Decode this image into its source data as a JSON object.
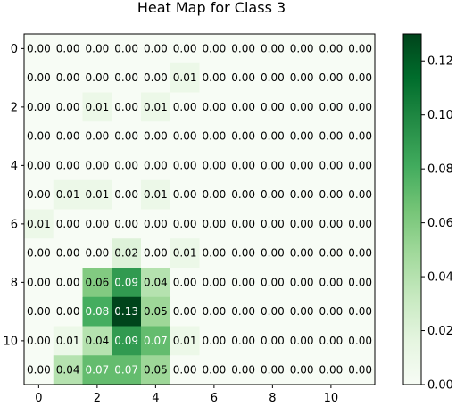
{
  "chart_data": {
    "type": "heatmap",
    "title": "Heat Map for Class 3",
    "xlabel": "",
    "ylabel": "",
    "colormap": "Greens",
    "vmin": 0.0,
    "vmax": 0.13,
    "x_ticks": [
      0,
      2,
      4,
      6,
      8,
      10
    ],
    "y_ticks": [
      0,
      2,
      4,
      6,
      8,
      10
    ],
    "colorbar_ticks": [
      "0.00",
      "0.02",
      "0.04",
      "0.06",
      "0.08",
      "0.10",
      "0.12"
    ],
    "values": [
      [
        0.0,
        0.0,
        0.0,
        0.0,
        0.0,
        0.0,
        0.0,
        0.0,
        0.0,
        0.0,
        0.0,
        0.0
      ],
      [
        0.0,
        0.0,
        0.0,
        0.0,
        0.0,
        0.01,
        0.0,
        0.0,
        0.0,
        0.0,
        0.0,
        0.0
      ],
      [
        0.0,
        0.0,
        0.01,
        0.0,
        0.01,
        0.0,
        0.0,
        0.0,
        0.0,
        0.0,
        0.0,
        0.0
      ],
      [
        0.0,
        0.0,
        0.0,
        0.0,
        0.0,
        0.0,
        0.0,
        0.0,
        0.0,
        0.0,
        0.0,
        0.0
      ],
      [
        0.0,
        0.0,
        0.0,
        0.0,
        0.0,
        0.0,
        0.0,
        0.0,
        0.0,
        0.0,
        0.0,
        0.0
      ],
      [
        0.0,
        0.01,
        0.01,
        0.0,
        0.01,
        0.0,
        0.0,
        0.0,
        0.0,
        0.0,
        0.0,
        0.0
      ],
      [
        0.01,
        0.0,
        0.0,
        0.0,
        0.0,
        0.0,
        0.0,
        0.0,
        0.0,
        0.0,
        0.0,
        0.0
      ],
      [
        0.0,
        0.0,
        0.0,
        0.02,
        0.0,
        0.01,
        0.0,
        0.0,
        0.0,
        0.0,
        0.0,
        0.0
      ],
      [
        0.0,
        0.0,
        0.06,
        0.09,
        0.04,
        0.0,
        0.0,
        0.0,
        0.0,
        0.0,
        0.0,
        0.0
      ],
      [
        0.0,
        0.0,
        0.08,
        0.13,
        0.05,
        0.0,
        0.0,
        0.0,
        0.0,
        0.0,
        0.0,
        0.0
      ],
      [
        0.0,
        0.01,
        0.04,
        0.09,
        0.07,
        0.01,
        0.0,
        0.0,
        0.0,
        0.0,
        0.0,
        0.0
      ],
      [
        0.0,
        0.04,
        0.07,
        0.07,
        0.05,
        0.0,
        0.0,
        0.0,
        0.0,
        0.0,
        0.0,
        0.0
      ]
    ]
  }
}
